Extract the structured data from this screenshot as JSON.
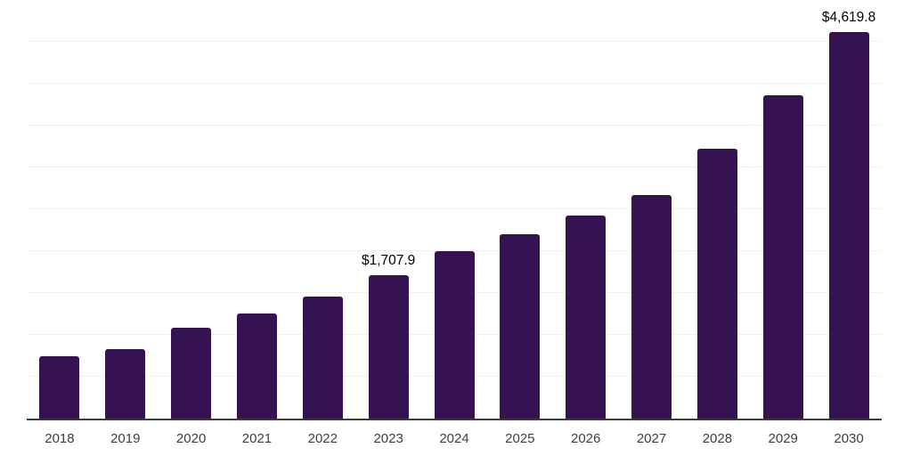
{
  "chart_data": {
    "type": "bar",
    "title": "",
    "xlabel": "",
    "ylabel": "",
    "categories": [
      "2018",
      "2019",
      "2020",
      "2021",
      "2022",
      "2023",
      "2024",
      "2025",
      "2026",
      "2027",
      "2028",
      "2029",
      "2030"
    ],
    "values": [
      740,
      835,
      1080,
      1260,
      1460,
      1707.9,
      2005,
      2200,
      2425,
      2675,
      3220,
      3865,
      4619.8
    ],
    "data_labels": [
      {
        "index": 5,
        "text": "$1,707.9"
      },
      {
        "index": 12,
        "text": "$4,619.8"
      }
    ],
    "ylim": [
      0,
      5000
    ],
    "gridline_step": 500,
    "grid": "horizontal",
    "y_axis_labels_visible": false,
    "legend_position": "none"
  },
  "colors": {
    "bar": "#351251",
    "axis": "#3b3b3b",
    "grid": "#f1f1f1",
    "data_label": "#000000",
    "tick_label": "#3d3d3d",
    "background": "#ffffff"
  }
}
